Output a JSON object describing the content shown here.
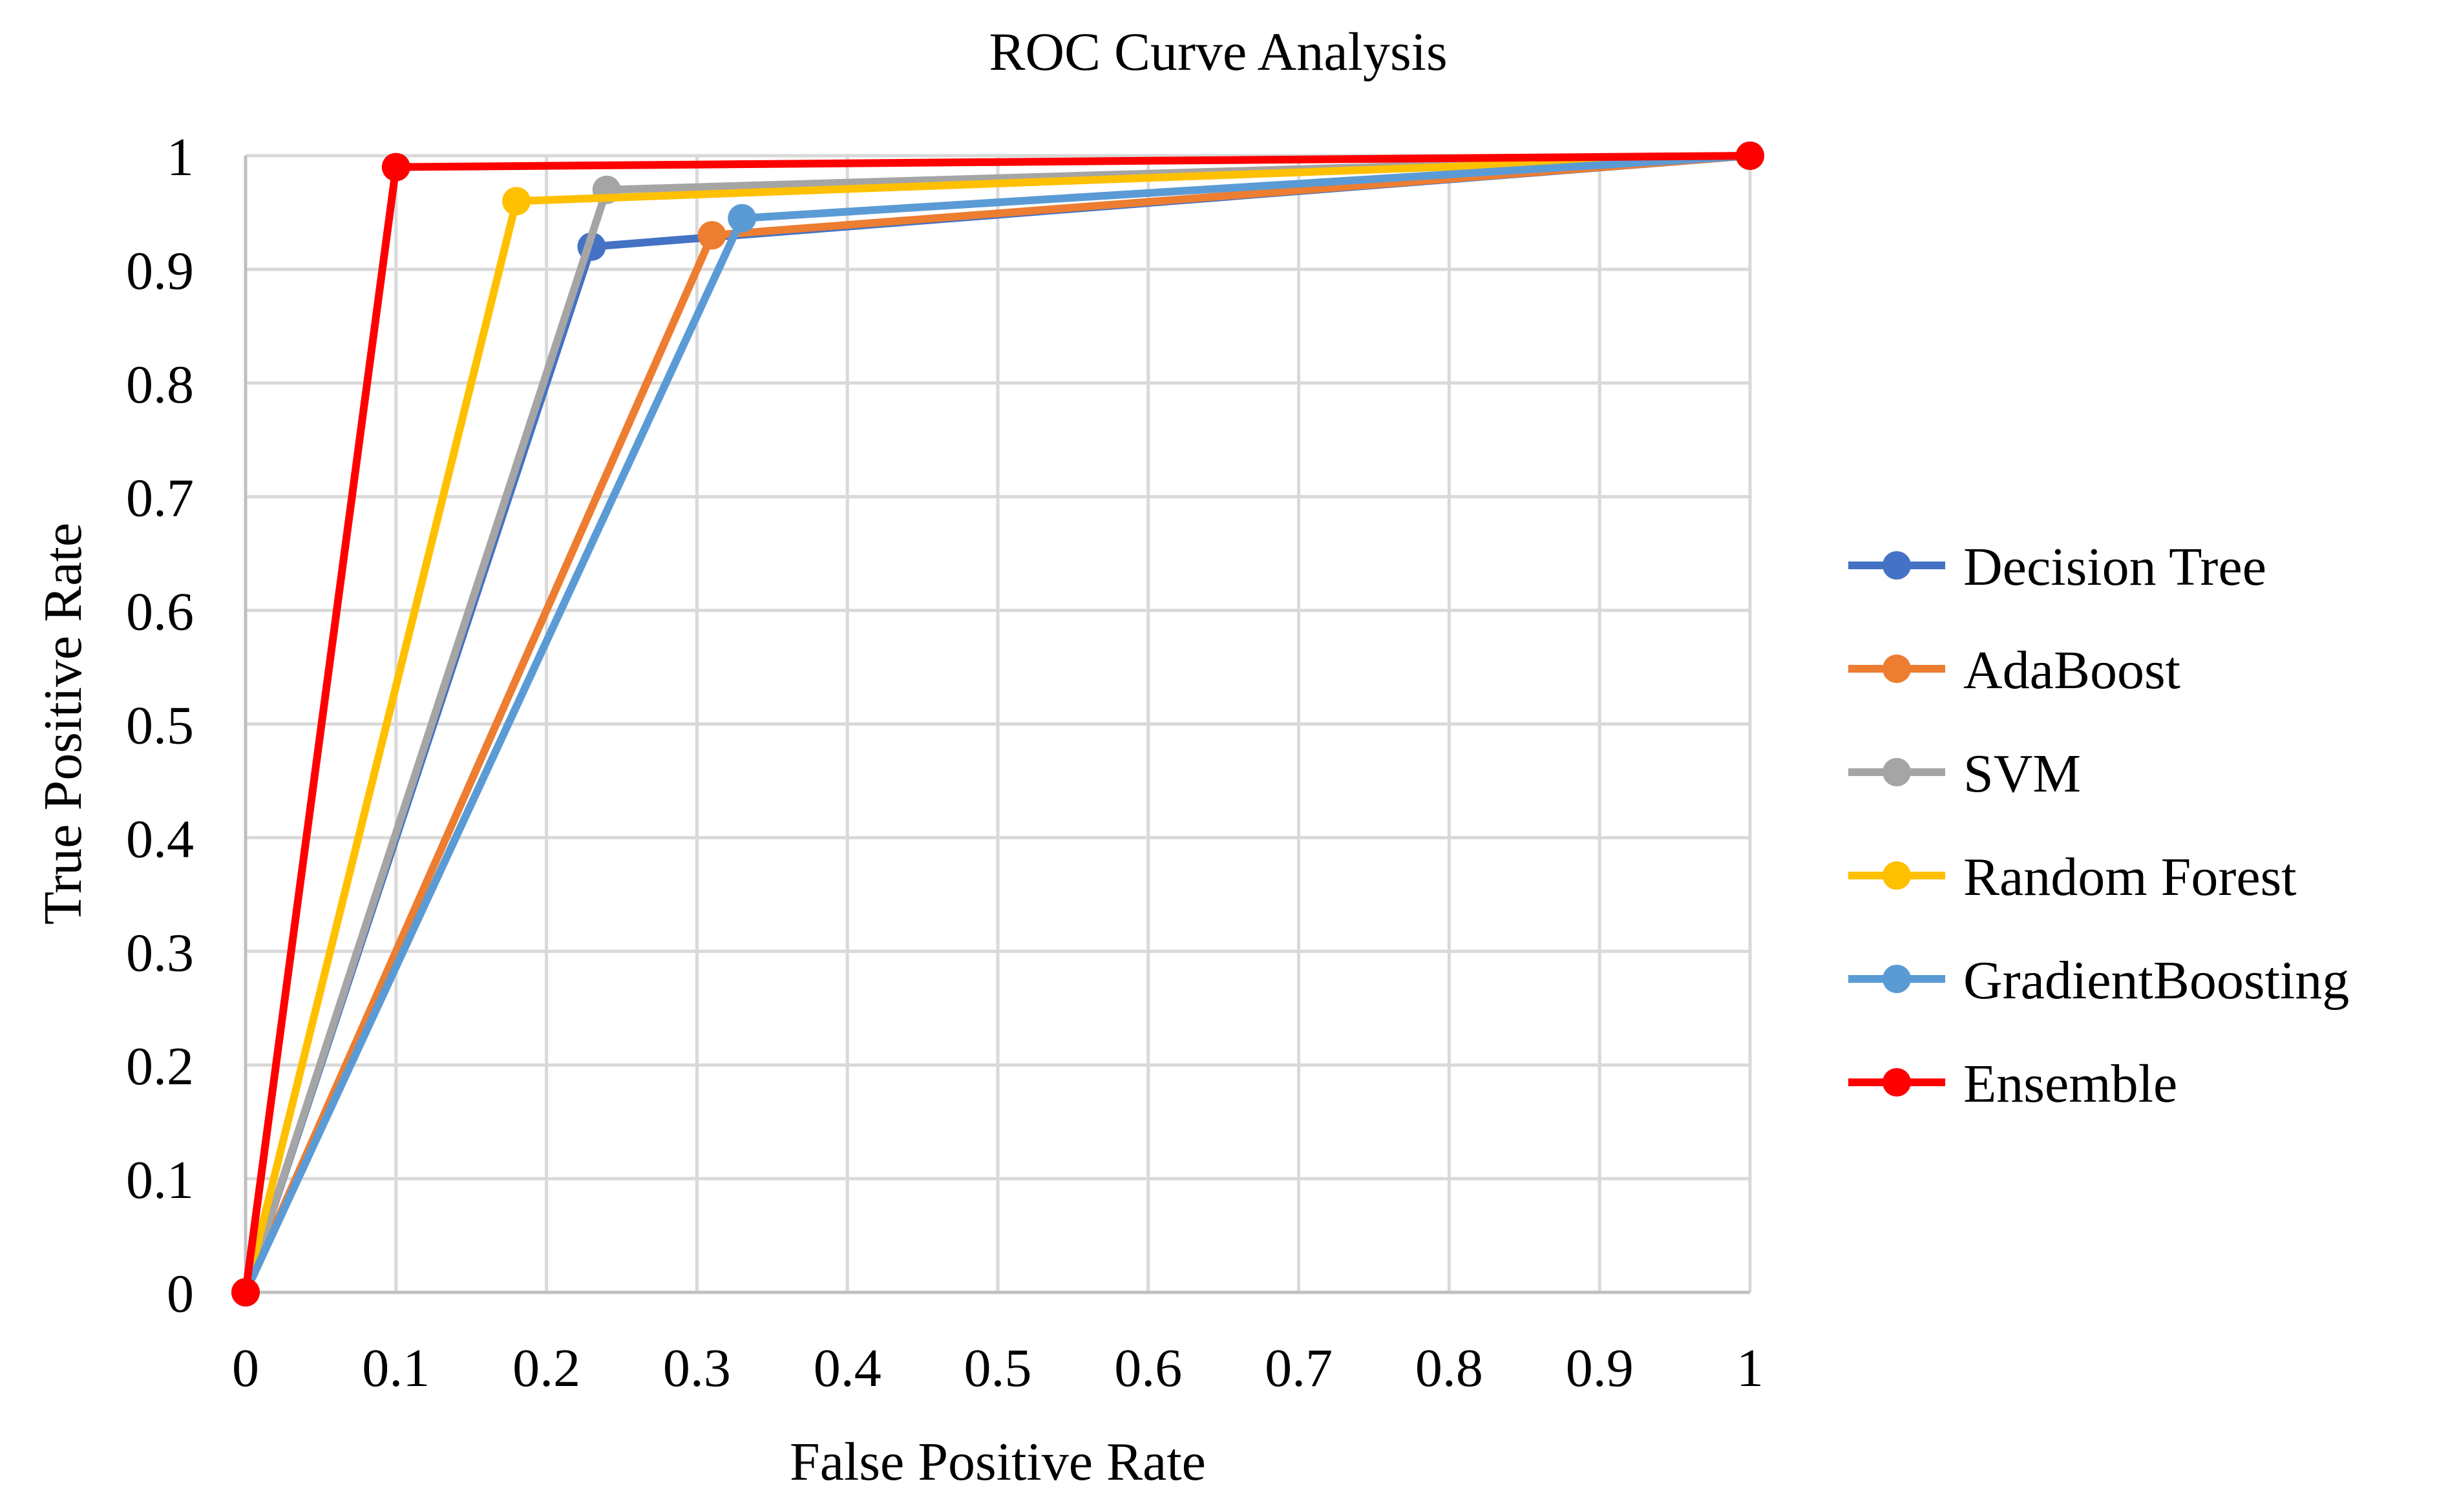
{
  "chart_data": {
    "type": "line",
    "title": "ROC Curve Analysis",
    "xlabel": "False Positive Rate",
    "ylabel": "True Positive Rate",
    "xlim": [
      0,
      1
    ],
    "ylim": [
      0,
      1
    ],
    "grid": true,
    "x_ticks": [
      "0",
      "0.1",
      "0.2",
      "0.3",
      "0.4",
      "0.5",
      "0.6",
      "0.7",
      "0.8",
      "0.9",
      "1"
    ],
    "y_ticks": [
      "0",
      "0.1",
      "0.2",
      "0.3",
      "0.4",
      "0.5",
      "0.6",
      "0.7",
      "0.8",
      "0.9",
      "1"
    ],
    "legend_position": "right",
    "series": [
      {
        "name": "Decision Tree",
        "color": "#4472C4",
        "points": [
          [
            0,
            0
          ],
          [
            0.23,
            0.92
          ],
          [
            1,
            1
          ]
        ]
      },
      {
        "name": "AdaBoost",
        "color": "#ED7D31",
        "points": [
          [
            0,
            0
          ],
          [
            0.31,
            0.93
          ],
          [
            1,
            1
          ]
        ]
      },
      {
        "name": "SVM",
        "color": "#A5A5A5",
        "points": [
          [
            0,
            0
          ],
          [
            0.24,
            0.97
          ],
          [
            1,
            1
          ]
        ]
      },
      {
        "name": "Random Forest",
        "color": "#FFC000",
        "points": [
          [
            0,
            0
          ],
          [
            0.18,
            0.96
          ],
          [
            1,
            1
          ]
        ]
      },
      {
        "name": "GradientBoosting",
        "color": "#5B9BD5",
        "points": [
          [
            0,
            0
          ],
          [
            0.33,
            0.945
          ],
          [
            1,
            1
          ]
        ]
      },
      {
        "name": "Ensemble",
        "color": "#FF0000",
        "points": [
          [
            0,
            0
          ],
          [
            0.1,
            0.99
          ],
          [
            1,
            1
          ]
        ]
      }
    ]
  }
}
